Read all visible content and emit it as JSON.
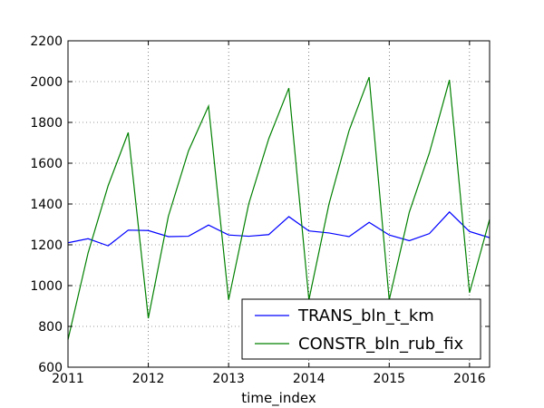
{
  "chart_data": {
    "type": "line",
    "title": "",
    "xlabel": "time_index",
    "ylabel": "",
    "xlim": [
      2011.0,
      2016.25
    ],
    "ylim": [
      600,
      2200
    ],
    "x_ticks": [
      2011,
      2012,
      2013,
      2014,
      2015,
      2016
    ],
    "x_tick_labels": [
      "2011",
      "2012",
      "2013",
      "2014",
      "2015",
      "2016"
    ],
    "y_ticks": [
      600,
      800,
      1000,
      1200,
      1400,
      1600,
      1800,
      2000,
      2200
    ],
    "y_tick_labels": [
      "600",
      "800",
      "1000",
      "1200",
      "1400",
      "1600",
      "1800",
      "2000",
      "2200"
    ],
    "grid": true,
    "legend_position": "lower-right",
    "x": [
      2011.0,
      2011.25,
      2011.5,
      2011.75,
      2012.0,
      2012.25,
      2012.5,
      2012.75,
      2013.0,
      2013.25,
      2013.5,
      2013.75,
      2014.0,
      2014.25,
      2014.5,
      2014.75,
      2015.0,
      2015.25,
      2015.5,
      2015.75,
      2016.0,
      2016.25
    ],
    "series": [
      {
        "name": "TRANS_bln_t_km",
        "color": "#0000ff",
        "values": [
          1210,
          1230,
          1195,
          1272,
          1270,
          1240,
          1242,
          1297,
          1248,
          1242,
          1250,
          1338,
          1268,
          1258,
          1240,
          1310,
          1248,
          1220,
          1255,
          1361,
          1265,
          1235
        ]
      },
      {
        "name": "CONSTR_bln_rub_fix",
        "color": "#008000",
        "values": [
          735,
          1160,
          1490,
          1750,
          840,
          1340,
          1660,
          1880,
          930,
          1400,
          1720,
          1968,
          930,
          1400,
          1760,
          2022,
          930,
          1360,
          1650,
          2008,
          965,
          1325
        ]
      }
    ]
  }
}
